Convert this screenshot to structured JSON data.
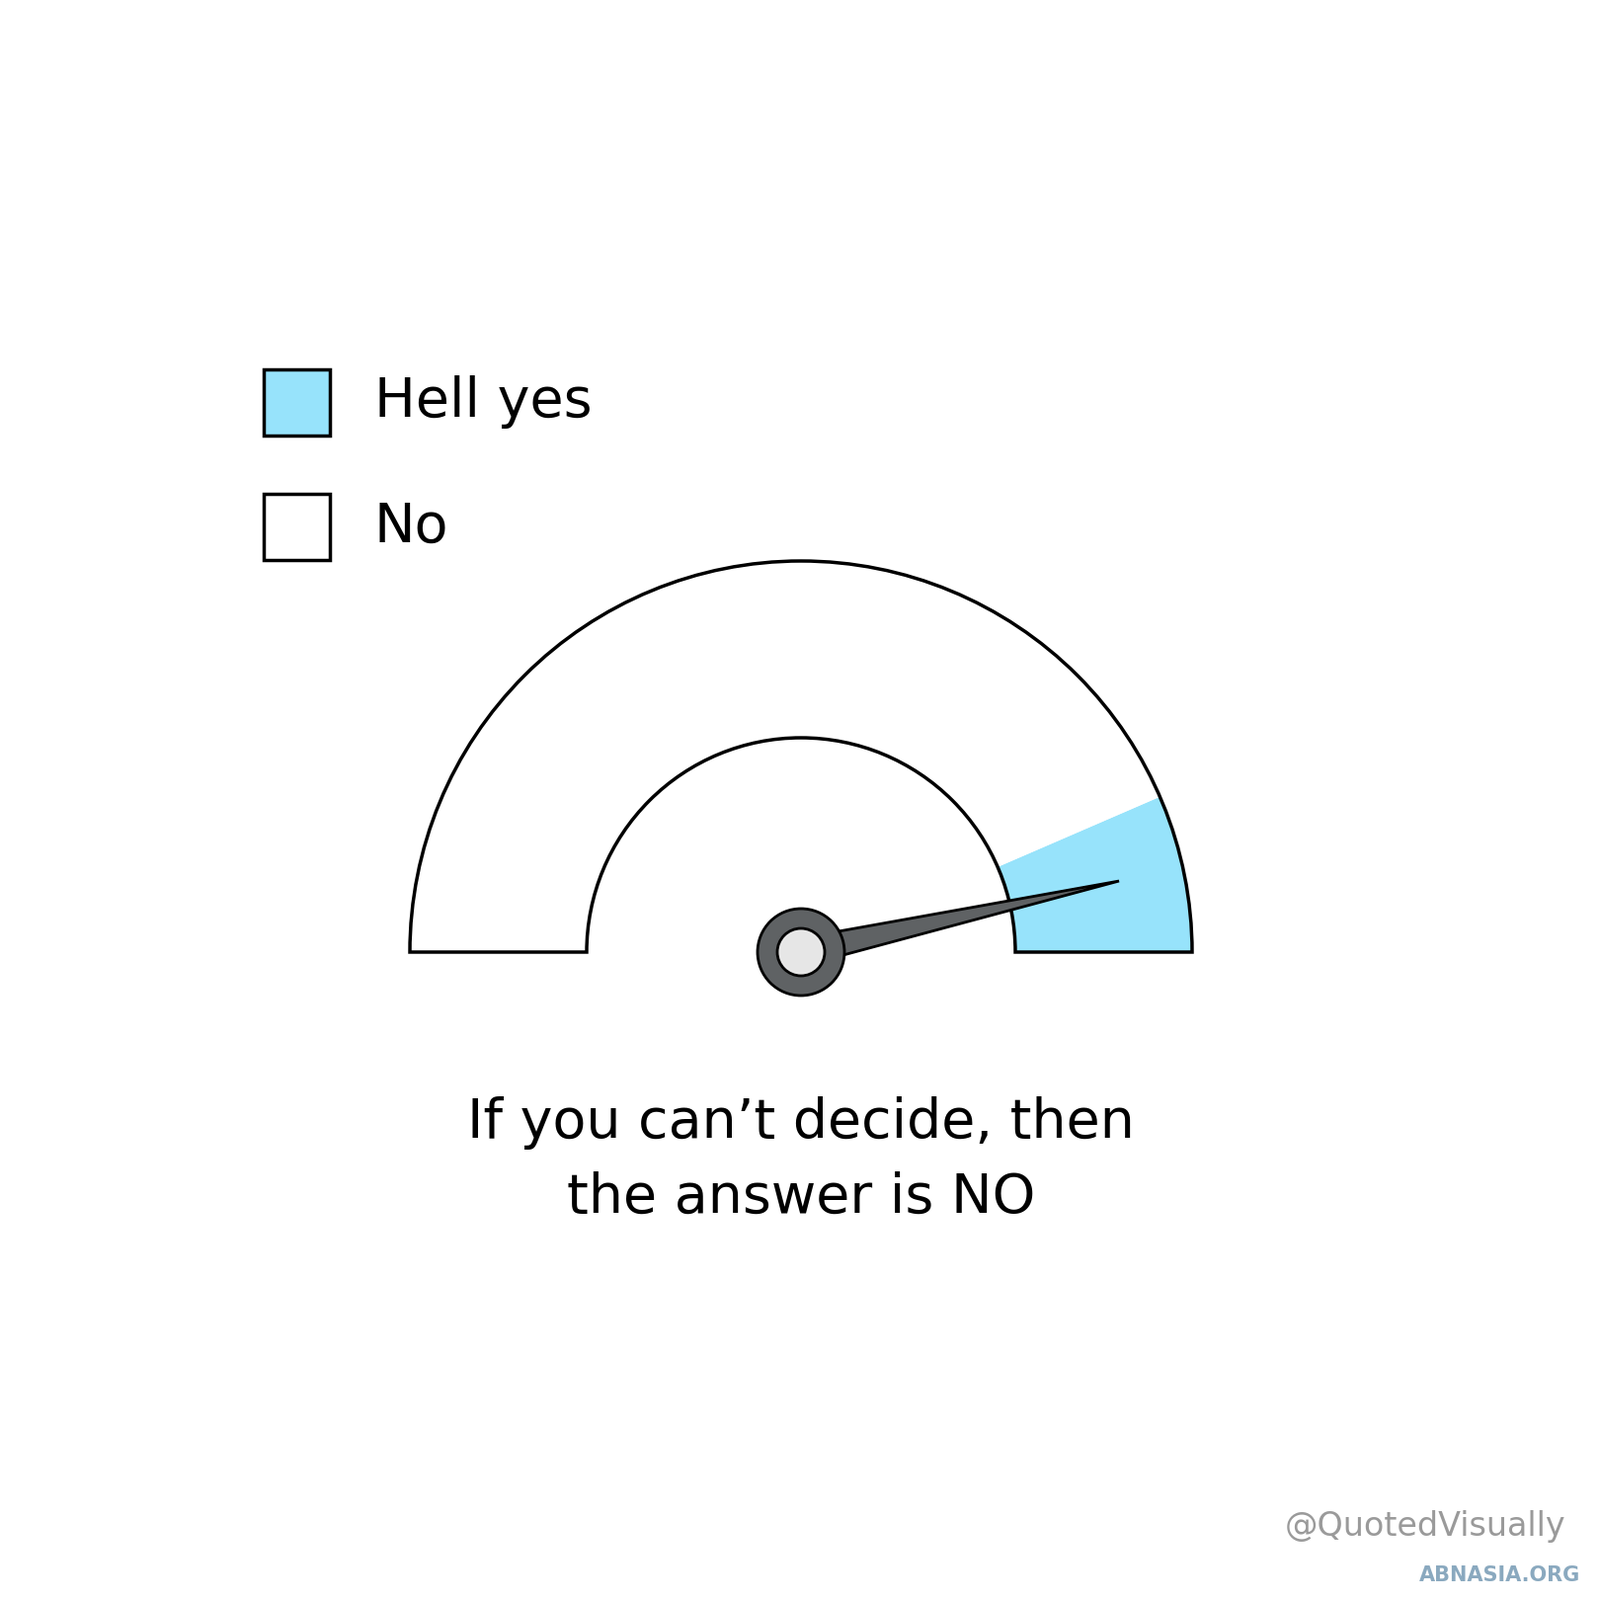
{
  "chart_data": {
    "type": "gauge",
    "range": [
      0,
      100
    ],
    "segments": [
      {
        "name": "Hell yes",
        "color": "#97e3fb",
        "from": 87,
        "to": 100
      },
      {
        "name": "No",
        "color": "#ffffff",
        "from": 0,
        "to": 87
      }
    ],
    "value": 93,
    "legend": "upper left",
    "caption": "If you can’t decide, then the answer is NO",
    "credit": "@QuotedVisually",
    "watermark": "ABNASIA.ORG"
  }
}
